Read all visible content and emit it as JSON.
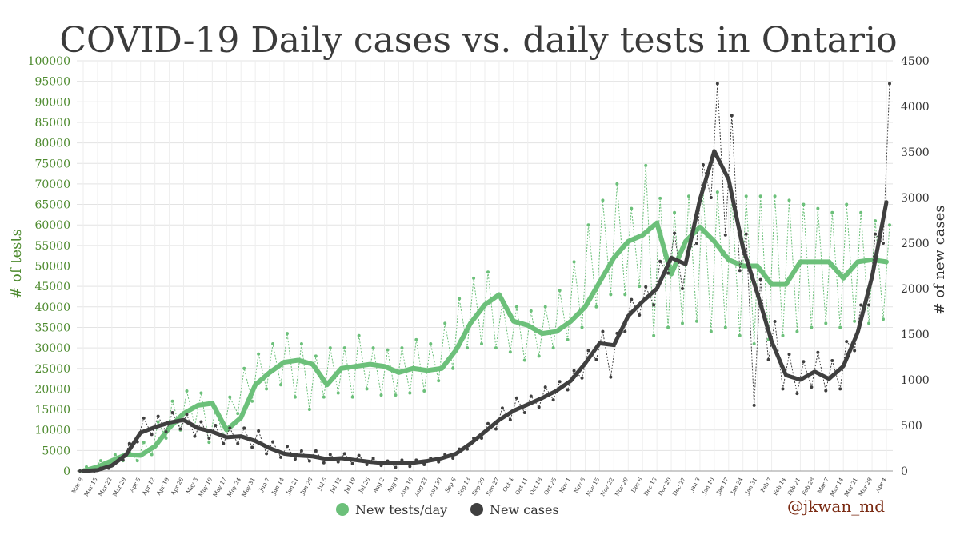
{
  "chart_data": {
    "type": "line",
    "title": "COVID-19 Daily cases vs. daily tests in Ontario",
    "ylabel_left": "# of tests",
    "ylabel_right": "# of new cases",
    "ylim_left": [
      0,
      100000
    ],
    "ylim_right": [
      0,
      4500
    ],
    "yticks_left": [
      0,
      5000,
      10000,
      15000,
      20000,
      25000,
      30000,
      35000,
      40000,
      45000,
      50000,
      55000,
      60000,
      65000,
      70000,
      75000,
      80000,
      85000,
      90000,
      95000,
      100000
    ],
    "yticks_right": [
      0,
      500,
      1000,
      1500,
      2000,
      2500,
      3000,
      3500,
      4000,
      4500
    ],
    "x_tick_labels": [
      "Mar 8",
      "Mar 15",
      "Mar 22",
      "Mar 29",
      "Apr 5",
      "Apr 12",
      "Apr 19",
      "Apr 26",
      "May 3",
      "May 10",
      "May 17",
      "May 24",
      "May 31",
      "Jun 7",
      "Jun 14",
      "Jun 21",
      "Jun 28",
      "Jul 5",
      "Jul 12",
      "Jul 19",
      "Jul 26",
      "Aug 2",
      "Aug 9",
      "Aug 16",
      "Aug 23",
      "Aug 30",
      "Sep 6",
      "Sep 13",
      "Sep 20",
      "Sep 27",
      "Oct 4",
      "Oct 11",
      "Oct 18",
      "Oct 25",
      "Nov 1",
      "Nov 8",
      "Nov 15",
      "Nov 22",
      "Nov 29",
      "Dec 6",
      "Dec 13",
      "Dec 20",
      "Dec 27",
      "Jan 3",
      "Jan 10",
      "Jan 17",
      "Jan 24",
      "Jan 31",
      "Feb 7",
      "Feb 14",
      "Feb 21",
      "Feb 28",
      "Mar 7",
      "Mar 14",
      "Mar 21",
      "Mar 28",
      "Apr 4"
    ],
    "grid": true,
    "legend_position": "bottom-center",
    "series": [
      {
        "name": "New tests/day",
        "axis": "left",
        "color": "#6cc07a",
        "weekly_avg": [
          0,
          1000,
          2500,
          4000,
          3800,
          6000,
          10500,
          14000,
          16000,
          16500,
          10000,
          13000,
          21000,
          24000,
          26500,
          27000,
          26000,
          21000,
          25000,
          25500,
          26000,
          25500,
          24000,
          25000,
          24500,
          25000,
          29500,
          36000,
          40500,
          43000,
          36500,
          35500,
          33500,
          34000,
          36500,
          40000,
          46000,
          52000,
          56000,
          57500,
          60500,
          48000,
          56000,
          59500,
          56000,
          51500,
          50000,
          50000,
          45500,
          45500,
          51000,
          51000,
          51000,
          47000,
          51000,
          51500,
          51000
        ],
        "daily_peaks": [
          1000,
          2500,
          4000,
          5000,
          7000,
          12000,
          17000,
          19500,
          19000,
          15000,
          18000,
          25000,
          28500,
          31000,
          33500,
          31000,
          28000,
          30000,
          30000,
          33000,
          30000,
          29500,
          30000,
          32000,
          31000,
          36000,
          42000,
          47000,
          48500,
          41000,
          40000,
          39000,
          40000,
          44000,
          51000,
          60000,
          66000,
          70000,
          64000,
          74500,
          66500,
          63000,
          67000,
          68500,
          68000,
          67000,
          67000,
          67000,
          67000,
          66000,
          65000,
          64000,
          63000,
          65000,
          63000,
          61000,
          60000
        ],
        "daily_troughs": [
          0,
          500,
          1500,
          2500,
          2500,
          4000,
          8000,
          10000,
          11000,
          7000,
          8500,
          14000,
          17000,
          20000,
          21000,
          18000,
          15000,
          18000,
          19000,
          18000,
          20000,
          18500,
          18500,
          19000,
          19500,
          22000,
          25000,
          30000,
          31000,
          30000,
          29000,
          27000,
          28000,
          30000,
          32000,
          35000,
          40000,
          43000,
          43000,
          45000,
          33000,
          35000,
          36000,
          36500,
          34000,
          35000,
          33000,
          31000,
          32000,
          33000,
          34000,
          35000,
          36000,
          35000,
          36500,
          36000,
          37000
        ]
      },
      {
        "name": "New cases",
        "axis": "right",
        "color": "#3f3f3f",
        "weekly_avg": [
          0,
          10,
          60,
          180,
          420,
          480,
          530,
          560,
          470,
          430,
          370,
          380,
          330,
          250,
          190,
          170,
          160,
          130,
          140,
          120,
          100,
          85,
          90,
          90,
          110,
          140,
          190,
          300,
          430,
          560,
          660,
          730,
          800,
          880,
          990,
          1180,
          1400,
          1380,
          1700,
          1860,
          2000,
          2340,
          2270,
          2980,
          3510,
          3200,
          2450,
          1950,
          1420,
          1050,
          1000,
          1090,
          1010,
          1150,
          1520,
          2130,
          2950
        ],
        "daily_peaks": [
          0,
          30,
          90,
          300,
          580,
          600,
          640,
          620,
          540,
          500,
          470,
          470,
          440,
          320,
          270,
          220,
          220,
          180,
          190,
          170,
          140,
          110,
          120,
          120,
          140,
          180,
          240,
          360,
          520,
          690,
          800,
          820,
          920,
          980,
          1100,
          1320,
          1530,
          1510,
          1880,
          2020,
          2300,
          2610,
          2440,
          3360,
          4250,
          3900,
          2600,
          2100,
          1640,
          1280,
          1200,
          1300,
          1210,
          1420,
          1820,
          2600,
          4250
        ],
        "daily_troughs": [
          0,
          0,
          30,
          120,
          320,
          400,
          430,
          460,
          380,
          360,
          300,
          300,
          260,
          190,
          150,
          130,
          110,
          90,
          100,
          80,
          70,
          60,
          40,
          50,
          70,
          100,
          140,
          240,
          360,
          460,
          560,
          640,
          700,
          780,
          890,
          1020,
          1220,
          1030,
          1530,
          1710,
          1820,
          2170,
          2000,
          2500,
          3000,
          2590,
          2200,
          720,
          1220,
          900,
          850,
          920,
          880,
          900,
          1320,
          1820,
          2500
        ]
      }
    ]
  },
  "legend": {
    "items": [
      {
        "label": "New tests/day",
        "color": "#6cc07a"
      },
      {
        "label": "New cases",
        "color": "#3f3f3f"
      }
    ]
  },
  "credit": "@jkwan_md"
}
